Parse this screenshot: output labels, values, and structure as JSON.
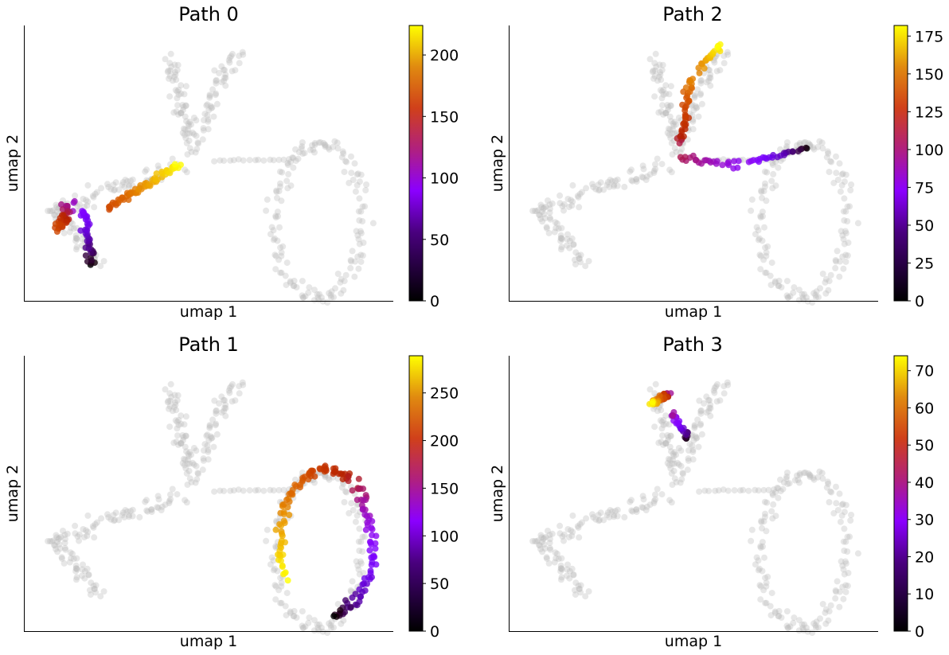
{
  "colors": {
    "background_points": "#bbbbbb",
    "gnuplot_low": "#000000",
    "gnuplot_mid": "#8b00ff",
    "gnuplot_high": "#ffff00",
    "axis": "#000000"
  },
  "chart_data": [
    {
      "type": "scatter",
      "title": "Path 0",
      "xlabel": "umap 1",
      "ylabel": "umap 2",
      "xticks": "none",
      "yticks": "none",
      "colormap": "gnuplot",
      "colorbar": {
        "range": [
          0,
          224
        ],
        "ticks": [
          0,
          50,
          100,
          150,
          200
        ]
      },
      "path_region": "left arm of the embedding, from lower-left tip toward the central junction",
      "highlighted_points": 140
    },
    {
      "type": "scatter",
      "title": "Path 2",
      "xlabel": "umap 1",
      "ylabel": "umap 2",
      "xticks": "none",
      "yticks": "none",
      "colormap": "gnuplot",
      "colorbar": {
        "range": [
          0,
          182
        ],
        "ticks": [
          0,
          25,
          50,
          75,
          100,
          125,
          150,
          175
        ]
      },
      "path_region": "bridge to the right then up the top arm",
      "highlighted_points": 110
    },
    {
      "type": "scatter",
      "title": "Path 1",
      "xlabel": "umap 1",
      "ylabel": "umap 2",
      "xticks": "none",
      "yticks": "none",
      "colormap": "gnuplot",
      "colorbar": {
        "range": [
          0,
          289
        ],
        "ticks": [
          0,
          50,
          100,
          150,
          200,
          250
        ]
      },
      "path_region": "ring on the right side of the embedding",
      "highlighted_points": 160
    },
    {
      "type": "scatter",
      "title": "Path 3",
      "xlabel": "umap 1",
      "ylabel": "umap 2",
      "xticks": "none",
      "yticks": "none",
      "colormap": "gnuplot",
      "colorbar": {
        "range": [
          0,
          74
        ],
        "ticks": [
          0,
          10,
          20,
          30,
          40,
          50,
          60,
          70
        ]
      },
      "path_region": "tip of the top arm",
      "highlighted_points": 60
    }
  ]
}
